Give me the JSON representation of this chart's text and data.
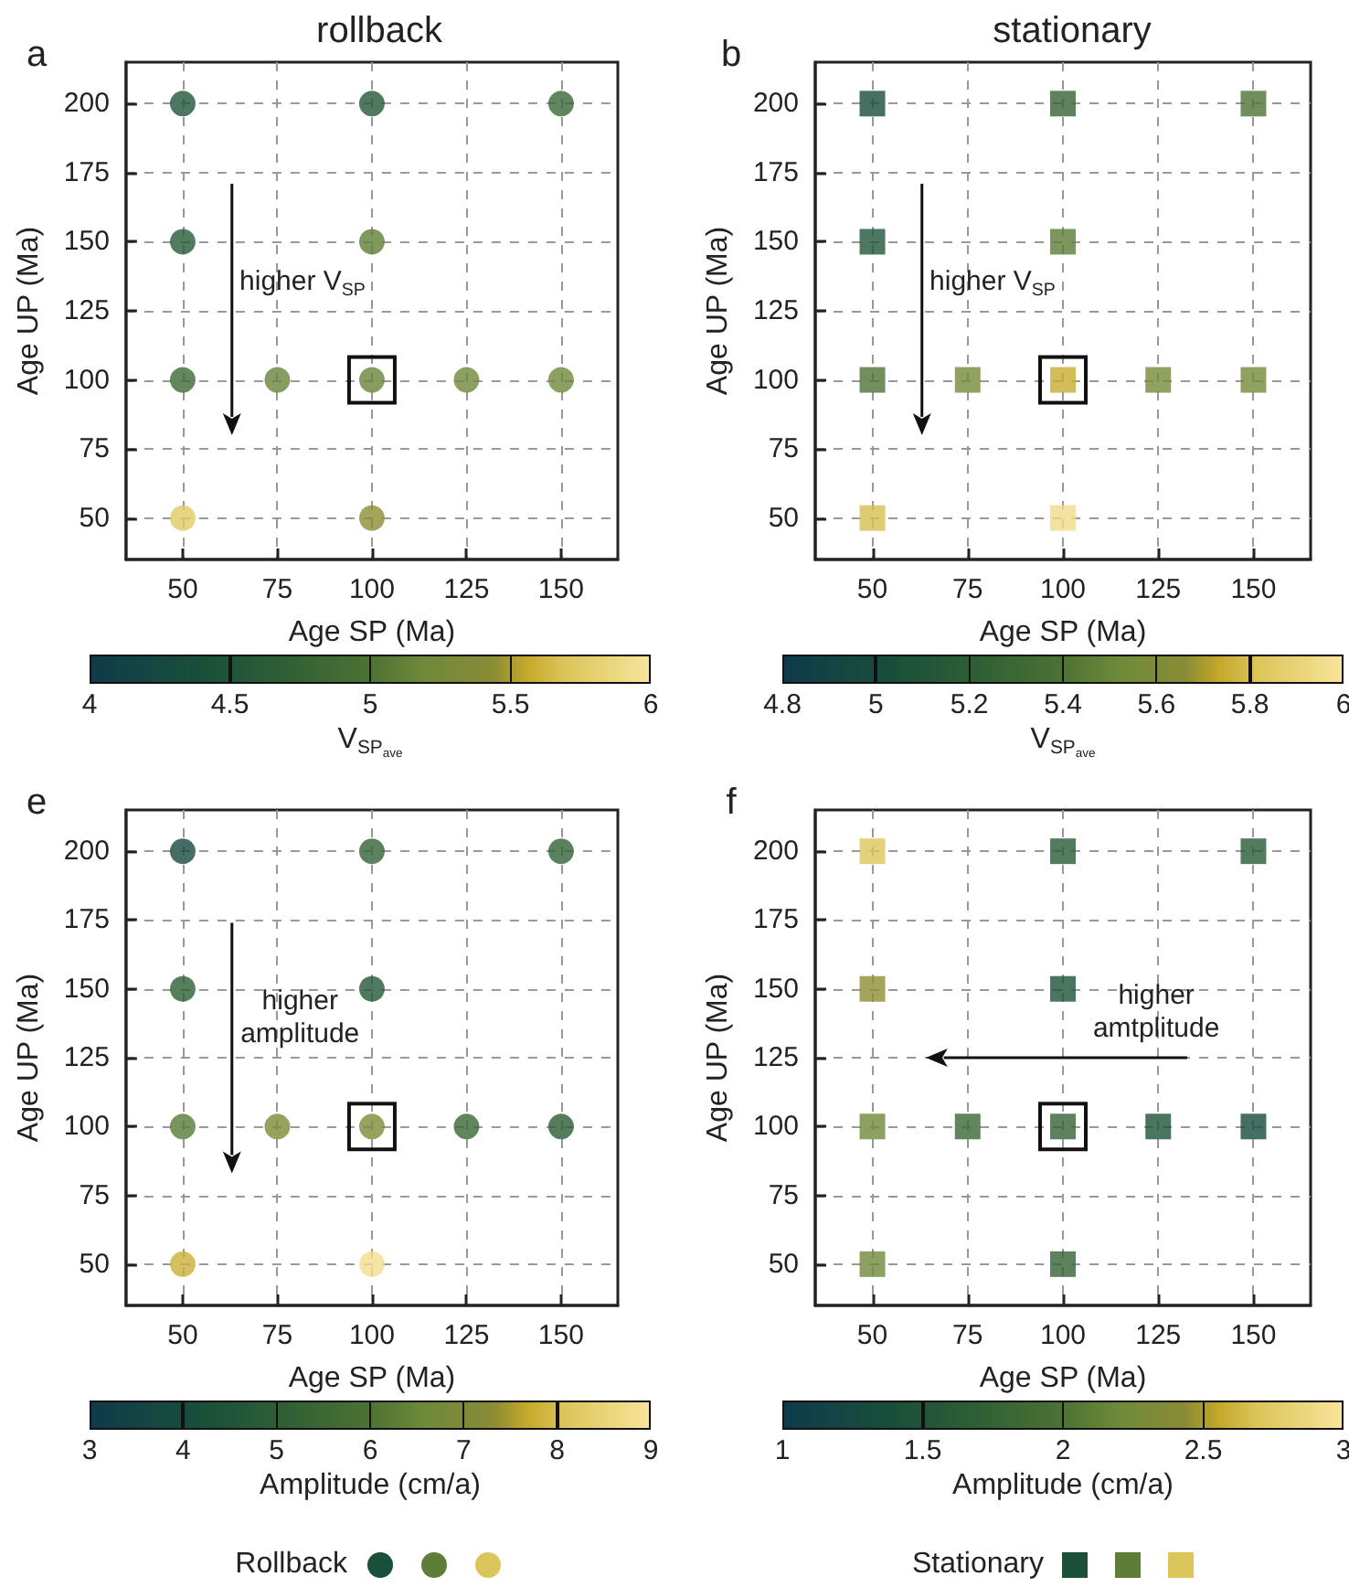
{
  "chart_data": [
    {
      "type": "scatter",
      "title": "rollback",
      "xlabel": "Age SP (Ma)",
      "ylabel": "Age UP (Ma)",
      "clabel": "V$_{SP}$$_{ave}$",
      "marker": "circle",
      "grid": true,
      "x": [
        50,
        100,
        150,
        50,
        100,
        50,
        75,
        100,
        125,
        150,
        50,
        100
      ],
      "values": [
        200,
        200,
        200,
        150,
        150,
        100,
        100,
        100,
        100,
        100,
        50,
        50
      ],
      "cvalues": [
        4.5,
        4.55,
        4.8,
        4.6,
        5.1,
        4.85,
        5.15,
        5.15,
        5.2,
        5.2,
        5.75,
        5.45
      ],
      "xlim": [
        35,
        165
      ],
      "ylim": [
        35,
        215
      ],
      "xticks": [
        50,
        75,
        100,
        125,
        150
      ],
      "yticks": [
        50,
        75,
        100,
        125,
        150,
        175,
        200
      ],
      "clim": [
        4,
        6
      ],
      "cticks": [
        4,
        4.5,
        5,
        5.5,
        6
      ],
      "annotations": [
        "a",
        "higher V$_{SP}$"
      ]
    },
    {
      "type": "scatter",
      "title": "stationary",
      "xlabel": "Age SP (Ma)",
      "ylabel": "Age UP (Ma)",
      "clabel": "V$_{SP}$$_{ave}$",
      "marker": "square",
      "grid": true,
      "x": [
        50,
        100,
        150,
        50,
        100,
        50,
        75,
        100,
        125,
        150,
        50,
        100
      ],
      "values": [
        200,
        200,
        200,
        150,
        150,
        100,
        100,
        100,
        100,
        100,
        50,
        50
      ],
      "cvalues": [
        5.0,
        5.25,
        5.4,
        5.1,
        5.45,
        5.4,
        5.55,
        5.75,
        5.55,
        5.55,
        5.8,
        5.95
      ],
      "xlim": [
        35,
        165
      ],
      "ylim": [
        35,
        215
      ],
      "xticks": [
        50,
        75,
        100,
        125,
        150
      ],
      "yticks": [
        50,
        75,
        100,
        125,
        150,
        175,
        200
      ],
      "clim": [
        4.8,
        6
      ],
      "cticks": [
        4.8,
        5,
        5.2,
        5.4,
        5.6,
        5.8,
        6
      ],
      "annotations": [
        "b",
        "higher V$_{SP}$"
      ]
    },
    {
      "type": "scatter",
      "xlabel": "Age SP (Ma)",
      "ylabel": "Age UP (Ma)",
      "clabel": "Amplitude (cm/a)",
      "marker": "circle",
      "grid": true,
      "x": [
        50,
        100,
        150,
        50,
        100,
        50,
        75,
        100,
        125,
        150,
        50,
        100
      ],
      "values": [
        200,
        200,
        200,
        150,
        150,
        100,
        100,
        100,
        100,
        100,
        50,
        50
      ],
      "cvalues": [
        3.8,
        5.2,
        5.2,
        5.0,
        4.6,
        6.2,
        7.0,
        7.0,
        5.4,
        4.9,
        7.8,
        8.8
      ],
      "xlim": [
        35,
        165
      ],
      "ylim": [
        35,
        215
      ],
      "xticks": [
        50,
        75,
        100,
        125,
        150
      ],
      "yticks": [
        50,
        75,
        100,
        125,
        150,
        175,
        200
      ],
      "clim": [
        3,
        9
      ],
      "cticks": [
        3,
        4,
        5,
        6,
        7,
        8,
        9
      ],
      "annotations": [
        "e",
        "higher amplitude",
        "Rollback"
      ]
    },
    {
      "type": "scatter",
      "xlabel": "Age SP (Ma)",
      "ylabel": "Age UP (Ma)",
      "clabel": "Amplitude (cm/a)",
      "marker": "square",
      "grid": true,
      "x": [
        50,
        100,
        150,
        50,
        100,
        50,
        75,
        100,
        125,
        150,
        50,
        100
      ],
      "values": [
        200,
        200,
        200,
        150,
        150,
        100,
        100,
        100,
        100,
        100,
        50,
        50
      ],
      "cvalues": [
        2.7,
        1.6,
        1.6,
        2.45,
        1.45,
        2.2,
        1.8,
        1.75,
        1.45,
        1.3,
        2.2,
        1.75
      ],
      "xlim": [
        35,
        165
      ],
      "ylim": [
        35,
        215
      ],
      "xticks": [
        50,
        75,
        100,
        125,
        150
      ],
      "yticks": [
        50,
        75,
        100,
        125,
        150,
        175,
        200
      ],
      "clim": [
        1,
        3
      ],
      "cticks": [
        1,
        1.5,
        2,
        2.5,
        3
      ],
      "annotations": [
        "f",
        "higher amtplitude",
        "Stationary"
      ]
    }
  ]
}
